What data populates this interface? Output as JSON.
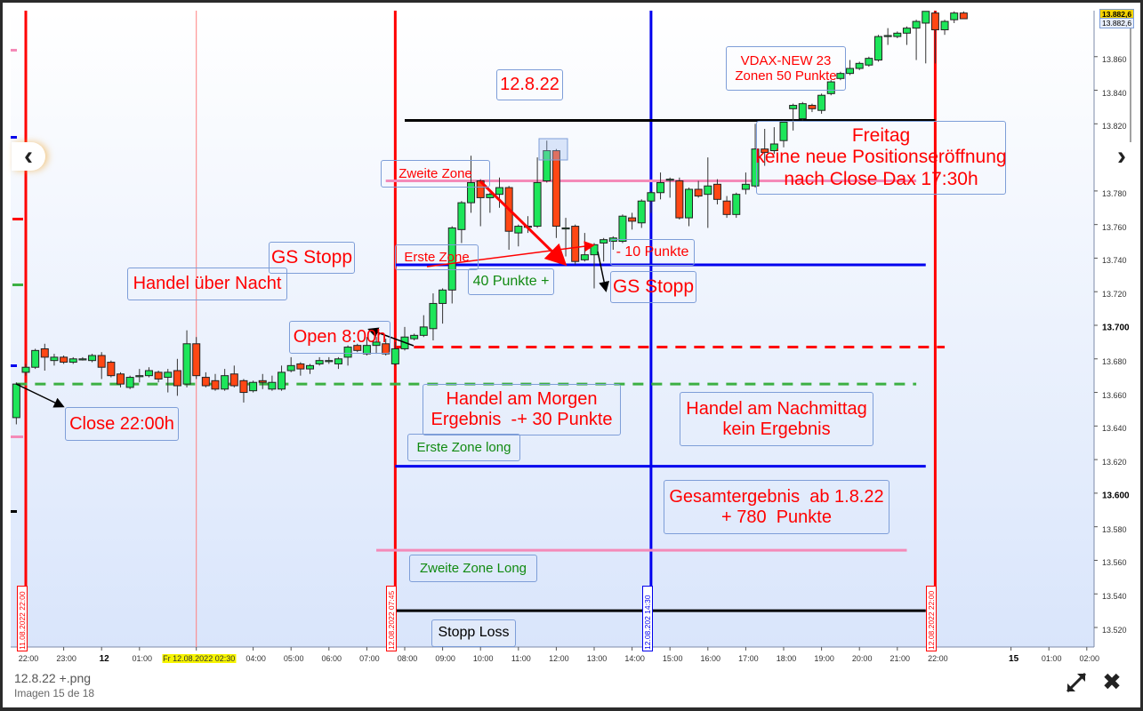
{
  "viewer": {
    "file_name": "12.8.22 +.png",
    "counter": "Imagen 15 de 18",
    "prev_icon": "chevron-left-icon",
    "next_icon": "chevron-right-icon",
    "fullscreen_icon": "expand-arrows-icon",
    "close_icon": "close-x-icon",
    "prev_glyph": "‹",
    "next_glyph": "›",
    "close_glyph": "✖"
  },
  "chart_data": {
    "type": "candlestick",
    "title": "",
    "interval": "15 min",
    "first_candle": "11.08.2022 21:45",
    "ylim": [
      13508,
      13887
    ],
    "colors": {
      "up": "#1de65a",
      "down": "#ff4714",
      "background_top": "#ffffff",
      "background_bottom": "#d9e5fb"
    },
    "y_ticks": [
      {
        "value": 13860,
        "label": "13.860"
      },
      {
        "value": 13840,
        "label": "13.840"
      },
      {
        "value": 13820,
        "label": "13.820"
      },
      {
        "value": 13780,
        "label": "13.780"
      },
      {
        "value": 13760,
        "label": "13.760"
      },
      {
        "value": 13740,
        "label": "13.740"
      },
      {
        "value": 13720,
        "label": "13.720"
      },
      {
        "value": 13700,
        "label": "13.700",
        "bold": true
      },
      {
        "value": 13680,
        "label": "13.680"
      },
      {
        "value": 13660,
        "label": "13.660"
      },
      {
        "value": 13640,
        "label": "13.640"
      },
      {
        "value": 13620,
        "label": "13.620"
      },
      {
        "value": 13600,
        "label": "13.600",
        "bold": true
      },
      {
        "value": 13580,
        "label": "13.580"
      },
      {
        "value": 13560,
        "label": "13.560"
      },
      {
        "value": 13540,
        "label": "13.540"
      },
      {
        "value": 13520,
        "label": "13.520"
      }
    ],
    "x_ticks": [
      {
        "t": "11 22:00",
        "label": "22:00"
      },
      {
        "t": "11 23:00",
        "label": "23:00"
      },
      {
        "t": "12 00:00",
        "label": "12",
        "bold": true
      },
      {
        "t": "12 01:00",
        "label": "01:00"
      },
      {
        "t": "12 02:30",
        "label": "Fr 12.08.2022 02:30",
        "highlight": true
      },
      {
        "t": "12 04:00",
        "label": "04:00"
      },
      {
        "t": "12 05:00",
        "label": "05:00"
      },
      {
        "t": "12 06:00",
        "label": "06:00"
      },
      {
        "t": "12 07:00",
        "label": "07:00"
      },
      {
        "t": "12 08:00",
        "label": "08:00"
      },
      {
        "t": "12 09:00",
        "label": "09:00"
      },
      {
        "t": "12 10:00",
        "label": "10:00"
      },
      {
        "t": "12 11:00",
        "label": "11:00"
      },
      {
        "t": "12 12:00",
        "label": "12:00"
      },
      {
        "t": "12 13:00",
        "label": "13:00"
      },
      {
        "t": "12 14:00",
        "label": "14:00"
      },
      {
        "t": "12 15:00",
        "label": "15:00"
      },
      {
        "t": "12 16:00",
        "label": "16:00"
      },
      {
        "t": "12 17:00",
        "label": "17:00"
      },
      {
        "t": "12 18:00",
        "label": "18:00"
      },
      {
        "t": "12 19:00",
        "label": "19:00"
      },
      {
        "t": "12 20:00",
        "label": "20:00"
      },
      {
        "t": "12 21:00",
        "label": "21:00"
      },
      {
        "t": "12 22:00",
        "label": "22:00"
      },
      {
        "t": "15 00:00",
        "label": "15",
        "bold": true
      },
      {
        "t": "15 01:00",
        "label": "01:00"
      },
      {
        "t": "15 02:00",
        "label": "02:00"
      }
    ],
    "last_price_labels": [
      "13.882,6",
      "13.882,6"
    ],
    "candles_ohlc": [
      [
        13645,
        13666,
        13641,
        13665
      ],
      [
        13672,
        13677,
        13670,
        13675
      ],
      [
        13675,
        13686,
        13674,
        13685
      ],
      [
        13686,
        13689,
        13673,
        13681
      ],
      [
        13679,
        13683,
        13676,
        13681
      ],
      [
        13681,
        13682,
        13677,
        13678
      ],
      [
        13678,
        13681,
        13677,
        13680
      ],
      [
        13680,
        13681,
        13679,
        13680
      ],
      [
        13679,
        13683,
        13678,
        13682
      ],
      [
        13682,
        13684,
        13668,
        13675
      ],
      [
        13678,
        13679,
        13669,
        13670
      ],
      [
        13671,
        13672,
        13663,
        13665
      ],
      [
        13663,
        13670,
        13662,
        13669
      ],
      [
        13670,
        13674,
        13666,
        13670
      ],
      [
        13670,
        13675,
        13669,
        13673
      ],
      [
        13672,
        13673,
        13666,
        13668
      ],
      [
        13669,
        13674,
        13660,
        13672
      ],
      [
        13673,
        13680,
        13658,
        13664
      ],
      [
        13665,
        13697,
        13663,
        13689
      ],
      [
        13689,
        13693,
        13668,
        13670
      ],
      [
        13669,
        13672,
        13663,
        13664
      ],
      [
        13667,
        13671,
        13661,
        13662
      ],
      [
        13662,
        13674,
        13661,
        13670
      ],
      [
        13671,
        13676,
        13663,
        13664
      ],
      [
        13667,
        13668,
        13654,
        13660
      ],
      [
        13661,
        13667,
        13660,
        13666
      ],
      [
        13667,
        13671,
        13662,
        13666
      ],
      [
        13662,
        13670,
        13661,
        13666
      ],
      [
        13662,
        13676,
        13661,
        13672
      ],
      [
        13673,
        13681,
        13672,
        13676
      ],
      [
        13677,
        13678,
        13670,
        13674
      ],
      [
        13674,
        13677,
        13671,
        13676
      ],
      [
        13677,
        13681,
        13676,
        13679
      ],
      [
        13679,
        13681,
        13677,
        13679
      ],
      [
        13677,
        13681,
        13674,
        13680
      ],
      [
        13681,
        13688,
        13676,
        13687
      ],
      [
        13688,
        13689,
        13684,
        13685
      ],
      [
        13683,
        13693,
        13682,
        13688
      ],
      [
        13688,
        13693,
        13683,
        13690
      ],
      [
        13689,
        13692,
        13682,
        13683
      ],
      [
        13677,
        13690,
        13676,
        13686
      ],
      [
        13686,
        13699,
        13685,
        13693
      ],
      [
        13692,
        13695,
        13691,
        13694
      ],
      [
        13694,
        13706,
        13693,
        13699
      ],
      [
        13698,
        13719,
        13691,
        13713
      ],
      [
        13713,
        13722,
        13701,
        13721
      ],
      [
        13721,
        13759,
        13713,
        13758
      ],
      [
        13757,
        13774,
        13749,
        13773
      ],
      [
        13773,
        13801,
        13767,
        13785
      ],
      [
        13786,
        13787,
        13759,
        13776
      ],
      [
        13776,
        13779,
        13767,
        13778
      ],
      [
        13778,
        13788,
        13770,
        13782
      ],
      [
        13782,
        13783,
        13745,
        13756
      ],
      [
        13755,
        13760,
        13747,
        13759
      ],
      [
        13759,
        13765,
        13755,
        13759
      ],
      [
        13759,
        13800,
        13758,
        13785
      ],
      [
        13786,
        13810,
        13785,
        13804
      ],
      [
        13804,
        13805,
        13752,
        13759
      ],
      [
        13758,
        13764,
        13741,
        13758
      ],
      [
        13759,
        13760,
        13736,
        13738
      ],
      [
        13739,
        13755,
        13738,
        13742
      ],
      [
        13742,
        13749,
        13722,
        13748
      ],
      [
        13749,
        13752,
        13738,
        13751
      ],
      [
        13750,
        13753,
        13745,
        13752
      ],
      [
        13750,
        13766,
        13749,
        13765
      ],
      [
        13764,
        13767,
        13757,
        13762
      ],
      [
        13761,
        13775,
        13758,
        13774
      ],
      [
        13774,
        13780,
        13767,
        13779
      ],
      [
        13779,
        13791,
        13775,
        13785
      ],
      [
        13787,
        13788,
        13776,
        13787
      ],
      [
        13786,
        13788,
        13763,
        13764
      ],
      [
        13764,
        13782,
        13759,
        13781
      ],
      [
        13781,
        13786,
        13776,
        13777
      ],
      [
        13778,
        13800,
        13758,
        13783
      ],
      [
        13784,
        13787,
        13772,
        13775
      ],
      [
        13774,
        13777,
        13764,
        13766
      ],
      [
        13766,
        13779,
        13764,
        13778
      ],
      [
        13781,
        13791,
        13778,
        13784
      ],
      [
        13783,
        13820,
        13782,
        13805
      ],
      [
        13805,
        13817,
        13795,
        13803
      ],
      [
        13804,
        13818,
        13802,
        13808
      ],
      [
        13810,
        13822,
        13806,
        13821
      ],
      [
        13829,
        13832,
        13816,
        13831
      ],
      [
        13823,
        13833,
        13822,
        13832
      ],
      [
        13831,
        13832,
        13827,
        13829
      ],
      [
        13828,
        13838,
        13826,
        13837
      ],
      [
        13838,
        13846,
        13837,
        13845
      ],
      [
        13847,
        13851,
        13846,
        13850
      ],
      [
        13850,
        13858,
        13849,
        13853
      ],
      [
        13853,
        13857,
        13852,
        13856
      ],
      [
        13855,
        13860,
        13854,
        13859
      ],
      [
        13858,
        13873,
        13857,
        13872
      ],
      [
        13872.6,
        13877,
        13867,
        13872.6
      ],
      [
        13872,
        13875,
        13871,
        13874
      ],
      [
        13874,
        13878,
        13867,
        13877
      ],
      [
        13877,
        13882,
        13858,
        13881
      ],
      [
        13880,
        13887,
        13856,
        13887
      ],
      [
        13886,
        13887,
        13856,
        13876
      ],
      [
        13876,
        13882,
        13873,
        13881
      ],
      [
        13882,
        13887,
        13880,
        13886
      ],
      [
        13886,
        13887,
        13883,
        13882.6
      ]
    ],
    "horizontal_lines": [
      {
        "price": 13822,
        "from": "12 08:00",
        "to": "12 22:00",
        "color": "#000000",
        "style": "solid"
      },
      {
        "price": 13786,
        "from": "12 07:30",
        "to": "12 21:30",
        "color": "#f48ab8",
        "style": "solid"
      },
      {
        "price": 13736,
        "from": "12 07:45",
        "to": "12 21:45",
        "color": "#0000ee",
        "style": "solid"
      },
      {
        "price": 13687,
        "from": "12 07:45",
        "to": "12 22:15",
        "color": "#ff0000",
        "style": "dashed"
      },
      {
        "price": 13665,
        "from": "11 21:45",
        "to": "12 21:30",
        "color": "#3cb043",
        "style": "dashed"
      },
      {
        "price": 13616,
        "from": "12 07:45",
        "to": "12 21:45",
        "color": "#0000ee",
        "style": "solid"
      },
      {
        "price": 13566,
        "from": "12 07:15",
        "to": "12 21:15",
        "color": "#f48ab8",
        "style": "solid"
      },
      {
        "price": 13530,
        "from": "12 07:45",
        "to": "12 21:45",
        "color": "#000000",
        "style": "solid"
      }
    ],
    "vertical_lines": [
      {
        "t": "11 22:00",
        "color": "#ff0000",
        "label": "11.08.2022 22:00"
      },
      {
        "t": "12 02:30",
        "color": "#ff8080",
        "label": ""
      },
      {
        "t": "12 07:45",
        "color": "#ff0000",
        "label": "12.08.2022 07:45"
      },
      {
        "t": "12 14:30",
        "color": "#0000ee",
        "label": "12.08.202 14:30"
      },
      {
        "t": "12 22:00",
        "color": "#ff0000",
        "label": "12.08.2022 22:00"
      }
    ]
  },
  "annotations": {
    "date": "12.8.22",
    "vdax": "VDAX-NEW 23\nZonen 50 Punkte",
    "friday": "Freitag\nkeine neue Positionseröffnung\nnach Close Dax 17:30h",
    "second_zone": "Zweite Zone",
    "first_zone": "Erste Zone",
    "plus_40": "40 Punkte +",
    "minus_10": "- 10 Punkte",
    "gs_stop_right": "GS Stopp",
    "gs_stop_left": "GS Stopp",
    "overnight": "Handel über Nacht",
    "open": "Open 8:00h",
    "close": "Close 22:00h",
    "morning": "Handel am Morgen\nErgebnis  -+ 30 Punkte",
    "afternoon": "Handel am Nachmittag\nkein Ergebnis",
    "first_zone_long": "Erste Zone long",
    "total": "Gesamtergebnis  ab 1.8.22\n+ 780  Punkte",
    "second_zone_long": "Zweite Zone Long",
    "stop_loss": "Stopp Loss"
  }
}
